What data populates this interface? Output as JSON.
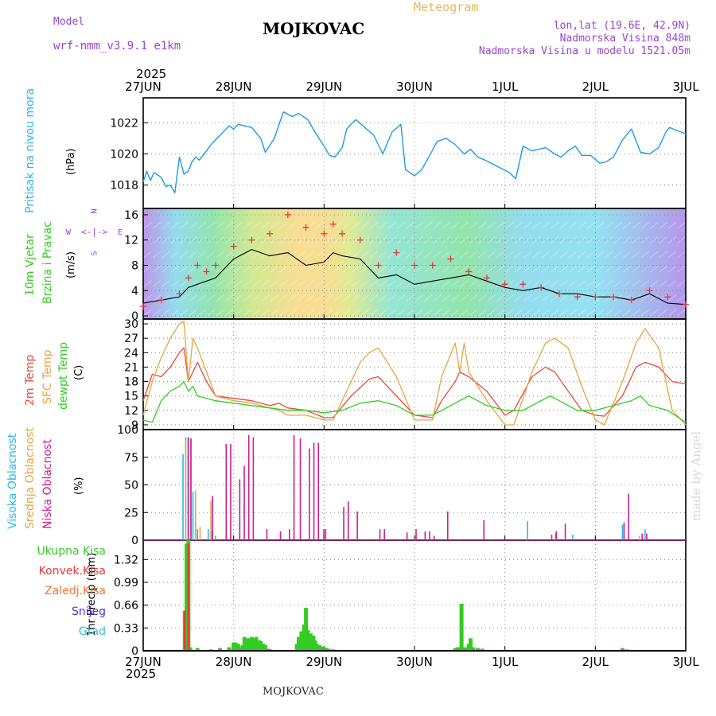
{
  "header": {
    "model_label": "Model",
    "model_name": "wrf-nmm_v3.9.1 e1km",
    "station": "MOJKOVAC",
    "product": "Meteogram",
    "coords": "lon,lat (19.6E, 42.9N)",
    "altitude": "Nadmorska Visina 848m",
    "model_altitude": "Nadmorska Visina u modelu 1521.05m",
    "year_top": "2025",
    "year_bottom": "2025",
    "footer_station": "MOJKOVAC",
    "credit": "made by Angel"
  },
  "x_dates": [
    "27JUN",
    "28JUN",
    "29JUN",
    "30JUN",
    "1JUL",
    "2JUL",
    "3JUL"
  ],
  "colors": {
    "pressure": "#1e9be0",
    "wind_speed": "#000000",
    "gust": "#e8383b",
    "t2m": "#e8483b",
    "sfc": "#e6a540",
    "dewpt": "#33cc22",
    "high_cloud": "#2ab6e8",
    "mid_cloud": "#e6a540",
    "low_cloud": "#cc1f8a",
    "precip_total": "#33cc22",
    "precip_conv": "#e8383b",
    "precip_ice": "#ee7733",
    "precip_snow": "#5533dd",
    "precip_graupel": "#33c3c3",
    "compass": "#9944cc"
  },
  "panels": {
    "pressure": {
      "label": "Pritisak na nivou mora",
      "unit": "(hPa)"
    },
    "wind": {
      "label1": "10m Vjetar",
      "label2": "Brzina i Pravac",
      "unit": "(m/s)",
      "compass": {
        "n": "N",
        "s": "S",
        "e": "E",
        "w": "W"
      }
    },
    "temp": {
      "label1": "2m Temp",
      "label2": "SFC Temp",
      "label3": "dewpt Temp",
      "unit": "(C)"
    },
    "cloud": {
      "label1": "Visoka Oblacnost",
      "label2": "Srednja Oblacnost",
      "label3": "Niska Oblacnost",
      "unit": "(%)"
    },
    "precip": {
      "unit": "1hr Precip (mm)",
      "legend": [
        "Ukupna Kisa",
        "Konvek.Kisa",
        "Zaledj.Kisa",
        "Snijeg",
        "Grad"
      ]
    }
  },
  "chart_data": [
    {
      "type": "line",
      "title": "Pritisak na nivou mora",
      "ylabel": "(hPa)",
      "ylim": [
        1016.5,
        1023.6
      ],
      "yticks": [
        "1018",
        "1020",
        "1022"
      ],
      "x_unit": "days since 27JUN 00UTC",
      "series": [
        {
          "name": "pressure",
          "x": [
            0,
            0.04,
            0.08,
            0.12,
            0.2,
            0.25,
            0.3,
            0.35,
            0.4,
            0.45,
            0.5,
            0.54,
            0.58,
            0.62,
            0.7,
            0.75,
            0.85,
            0.95,
            1.0,
            1.05,
            1.12,
            1.2,
            1.3,
            1.35,
            1.45,
            1.55,
            1.65,
            1.72,
            1.82,
            1.9,
            2.0,
            2.06,
            2.12,
            2.2,
            2.25,
            2.35,
            2.45,
            2.55,
            2.65,
            2.75,
            2.85,
            2.9,
            3.0,
            3.08,
            3.15,
            3.25,
            3.35,
            3.45,
            3.55,
            3.62,
            3.7,
            3.78,
            3.85,
            3.95,
            4.05,
            4.12,
            4.2,
            4.3,
            4.45,
            4.55,
            4.62,
            4.7,
            4.78,
            4.85,
            4.95,
            5.05,
            5.12,
            5.2,
            5.3,
            5.4,
            5.5,
            5.6,
            5.7,
            5.78,
            5.82,
            5.9,
            6.0
          ],
          "y": [
            1018.2,
            1018.9,
            1018.3,
            1018.8,
            1018.5,
            1017.9,
            1018.0,
            1017.5,
            1019.8,
            1018.7,
            1018.9,
            1019.5,
            1019.8,
            1019.6,
            1020.2,
            1020.6,
            1021.2,
            1021.8,
            1021.6,
            1021.9,
            1021.8,
            1021.7,
            1021.0,
            1020.1,
            1021.0,
            1022.7,
            1022.4,
            1022.6,
            1022.2,
            1021.4,
            1020.5,
            1019.9,
            1019.8,
            1020.4,
            1021.6,
            1022.2,
            1021.7,
            1021.2,
            1020.0,
            1021.4,
            1021.9,
            1019.0,
            1018.6,
            1019.0,
            1019.7,
            1020.8,
            1021.0,
            1020.6,
            1020.0,
            1020.3,
            1019.8,
            1019.6,
            1019.4,
            1019.1,
            1018.8,
            1018.4,
            1020.5,
            1020.2,
            1020.4,
            1020.0,
            1019.8,
            1020.2,
            1020.5,
            1019.9,
            1019.9,
            1019.4,
            1019.5,
            1019.8,
            1020.9,
            1021.6,
            1020.1,
            1020.0,
            1020.4,
            1021.4,
            1021.7,
            1021.5,
            1021.3
          ]
        }
      ]
    },
    {
      "type": "line",
      "title": "10m Vjetar Brzina i Pravac",
      "ylabel": "(m/s)",
      "ylim": [
        -0.5,
        17
      ],
      "yticks": [
        "0",
        "4",
        "8",
        "12",
        "16"
      ],
      "x_unit": "days since 27JUN 00UTC",
      "series": [
        {
          "name": "wind speed",
          "x": [
            0,
            0.2,
            0.4,
            0.5,
            0.6,
            0.7,
            0.8,
            1.0,
            1.2,
            1.4,
            1.6,
            1.8,
            2.0,
            2.1,
            2.2,
            2.4,
            2.6,
            2.8,
            3.0,
            3.2,
            3.4,
            3.6,
            3.8,
            4.0,
            4.2,
            4.4,
            4.6,
            4.8,
            5.0,
            5.2,
            5.4,
            5.6,
            5.8,
            6.0
          ],
          "y": [
            2,
            2.5,
            3,
            4.5,
            5,
            5.5,
            6,
            9,
            10.5,
            9.5,
            10,
            8,
            8.5,
            10,
            9.5,
            9,
            6,
            6.5,
            5,
            5.5,
            6,
            6.5,
            5.5,
            4.5,
            4,
            4.5,
            3.5,
            3.5,
            3,
            3,
            2.5,
            3.5,
            2,
            1.8
          ]
        },
        {
          "name": "wind gust",
          "x": [
            0,
            0.2,
            0.4,
            0.5,
            0.6,
            0.7,
            0.8,
            1.0,
            1.2,
            1.4,
            1.6,
            1.8,
            2.0,
            2.1,
            2.2,
            2.4,
            2.6,
            2.8,
            3.0,
            3.2,
            3.4,
            3.6,
            3.8,
            4.0,
            4.2,
            4.4,
            4.6,
            4.8,
            5.0,
            5.2,
            5.4,
            5.6,
            5.8,
            6.0
          ],
          "y": [
            1.5,
            2.5,
            3.5,
            6,
            8,
            7,
            8,
            11,
            12,
            13,
            16,
            14,
            13,
            14.5,
            13,
            12,
            8,
            10,
            8,
            8,
            9,
            7,
            6,
            5,
            5,
            4.5,
            3.5,
            3,
            3,
            3,
            2.5,
            4,
            3,
            1.8
          ]
        }
      ]
    },
    {
      "type": "line",
      "title": "2m Temp / SFC Temp / dewpt Temp",
      "ylabel": "(C)",
      "ylim": [
        8,
        31
      ],
      "yticks": [
        "9",
        "12",
        "15",
        "18",
        "21",
        "24",
        "27",
        "30"
      ],
      "x_unit": "days since 27JUN 00UTC",
      "series": [
        {
          "name": "2m Temp",
          "x": [
            0,
            0.1,
            0.2,
            0.3,
            0.4,
            0.45,
            0.5,
            0.6,
            0.7,
            0.8,
            1.0,
            1.2,
            1.4,
            1.5,
            1.6,
            1.8,
            2.0,
            2.1,
            2.3,
            2.5,
            2.6,
            2.8,
            3.0,
            3.2,
            3.3,
            3.45,
            3.5,
            3.6,
            3.8,
            4.0,
            4.1,
            4.3,
            4.45,
            4.55,
            4.7,
            4.85,
            5.0,
            5.1,
            5.3,
            5.45,
            5.55,
            5.7,
            5.85,
            6.0
          ],
          "y": [
            14,
            19.5,
            19,
            21,
            24,
            25,
            18,
            22,
            18,
            15,
            14.5,
            14,
            13,
            13.5,
            12.5,
            12,
            10.5,
            10.5,
            15,
            18.5,
            19,
            15,
            11,
            10.5,
            14,
            18,
            20,
            19,
            16,
            11,
            12,
            19,
            21,
            20,
            16,
            12,
            11,
            10.8,
            15,
            21,
            22,
            21,
            18,
            17.5
          ]
        },
        {
          "name": "SFC Temp",
          "x": [
            0,
            0.1,
            0.2,
            0.3,
            0.4,
            0.45,
            0.5,
            0.55,
            0.6,
            0.7,
            0.8,
            1.0,
            1.2,
            1.4,
            1.5,
            1.6,
            1.8,
            2.0,
            2.1,
            2.3,
            2.4,
            2.5,
            2.6,
            2.8,
            3.0,
            3.2,
            3.3,
            3.45,
            3.5,
            3.55,
            3.6,
            3.8,
            4.0,
            4.1,
            4.3,
            4.45,
            4.55,
            4.7,
            4.85,
            5.0,
            5.1,
            5.3,
            5.45,
            5.55,
            5.7,
            5.85,
            6.0
          ],
          "y": [
            11,
            18,
            23,
            27,
            30,
            30.5,
            18,
            27,
            25,
            20,
            15,
            14,
            13.5,
            12.5,
            12,
            11,
            11,
            10,
            10,
            18,
            22,
            24,
            25,
            19,
            10,
            10,
            19,
            26,
            20,
            26,
            20,
            14,
            9,
            9,
            20,
            26,
            27,
            25,
            17,
            10,
            9,
            18,
            26,
            29,
            25,
            12,
            9
          ]
        },
        {
          "name": "dewpt Temp",
          "x": [
            0,
            0.1,
            0.2,
            0.3,
            0.4,
            0.45,
            0.5,
            0.55,
            0.6,
            0.7,
            0.8,
            1.0,
            1.2,
            1.4,
            1.6,
            1.8,
            2.0,
            2.2,
            2.4,
            2.6,
            2.8,
            3.0,
            3.2,
            3.4,
            3.5,
            3.6,
            3.8,
            4.0,
            4.2,
            4.4,
            4.5,
            4.6,
            4.8,
            5.0,
            5.2,
            5.4,
            5.5,
            5.6,
            5.8,
            6.0
          ],
          "y": [
            10,
            9.5,
            14,
            16,
            17,
            18,
            16,
            17,
            15,
            14.5,
            14,
            13.5,
            13,
            12.5,
            12,
            12,
            11.5,
            12,
            13.5,
            14,
            13,
            11,
            11,
            13,
            14,
            15,
            13,
            12,
            12,
            14,
            15,
            14,
            12,
            12,
            13,
            14,
            15,
            13,
            12,
            9.5
          ]
        }
      ]
    },
    {
      "type": "bar",
      "title": "Visoka / Srednja / Niska Oblacnost",
      "ylabel": "(%)",
      "ylim": [
        0,
        100
      ],
      "yticks": [
        "0",
        "25",
        "50",
        "75",
        "100"
      ],
      "x_unit": "days since 27JUN 00UTC",
      "series": [
        {
          "name": "Visoka Oblacnost",
          "x": [
            0.44,
            0.47,
            0.5,
            0.55,
            0.6,
            0.72,
            0.76,
            0.8,
            4.25,
            4.75,
            5.3,
            5.55
          ],
          "y": [
            78,
            93,
            93,
            44,
            10,
            10,
            8,
            4,
            17,
            5,
            14,
            10
          ]
        },
        {
          "name": "Srednja Oblacnost",
          "x": [
            0.46,
            0.49,
            0.52,
            0.57,
            0.62,
            0.74,
            3.0,
            4.55,
            5.48
          ],
          "y": [
            90,
            93,
            92,
            45,
            12,
            36,
            3,
            6,
            4
          ]
        },
        {
          "name": "Niska Oblacnost",
          "x": [
            0.48,
            0.51,
            0.75,
            0.9,
            0.95,
            1.05,
            1.1,
            1.15,
            1.2,
            1.35,
            1.5,
            1.6,
            1.65,
            1.72,
            1.82,
            1.87,
            1.92,
            1.98,
            2.0,
            2.2,
            2.25,
            2.35,
            2.6,
            2.65,
            2.9,
            3.0,
            3.1,
            3.15,
            3.2,
            3.35,
            3.75,
            4.5,
            4.55,
            4.65,
            5.3,
            5.35,
            5.5,
            5.55
          ],
          "y": [
            93,
            92,
            40,
            87,
            87,
            55,
            67,
            95,
            93,
            10,
            8,
            10,
            95,
            92,
            83,
            88,
            88,
            10,
            10,
            30,
            35,
            26,
            10,
            10,
            7,
            10,
            8,
            8,
            4,
            26,
            18,
            5,
            8,
            15,
            16,
            42,
            6,
            6
          ]
        }
      ]
    },
    {
      "type": "bar",
      "title": "1hr Precip",
      "ylabel": "(mm)",
      "ylim": [
        0,
        1.6
      ],
      "yticks": [
        "0",
        "0.33",
        "0.66",
        "0.99",
        "1.32"
      ],
      "x_unit": "days since 27JUN 00UTC",
      "series": [
        {
          "name": "Ukupna Kisa",
          "x": [
            0.46,
            0.48,
            0.5,
            0.52,
            0.6,
            0.75,
            0.85,
            0.95,
            1.0,
            1.02,
            1.05,
            1.08,
            1.1,
            1.12,
            1.15,
            1.18,
            1.2,
            1.22,
            1.25,
            1.28,
            1.3,
            1.33,
            1.35,
            1.38,
            1.4,
            1.7,
            1.72,
            1.75,
            1.78,
            1.8,
            1.82,
            1.85,
            1.88,
            1.9,
            1.92,
            1.95,
            1.98,
            2.0,
            2.02,
            2.05,
            2.1,
            3.45,
            3.48,
            3.5,
            3.52,
            3.55,
            3.58,
            3.6,
            3.62,
            3.65,
            3.7,
            3.75,
            5.3,
            5.35
          ],
          "y": [
            0.58,
            1.55,
            1.6,
            0.05,
            0.04,
            0.02,
            0.04,
            0.05,
            0.12,
            0.12,
            0.1,
            0.05,
            0.08,
            0.2,
            0.18,
            0.18,
            0.2,
            0.18,
            0.2,
            0.15,
            0.14,
            0.1,
            0.08,
            0.03,
            0.02,
            0.1,
            0.2,
            0.28,
            0.38,
            0.62,
            0.3,
            0.25,
            0.22,
            0.15,
            0.1,
            0.08,
            0.06,
            0.05,
            0.04,
            0.03,
            0.02,
            0.04,
            0.05,
            0.05,
            0.68,
            0.05,
            0.05,
            0.1,
            0.18,
            0.05,
            0.04,
            0.03,
            0.04,
            0.02
          ]
        },
        {
          "name": "Konvek.Kisa",
          "x": [
            0.46,
            0.5
          ],
          "y": [
            0.58,
            1.55
          ]
        }
      ]
    }
  ]
}
